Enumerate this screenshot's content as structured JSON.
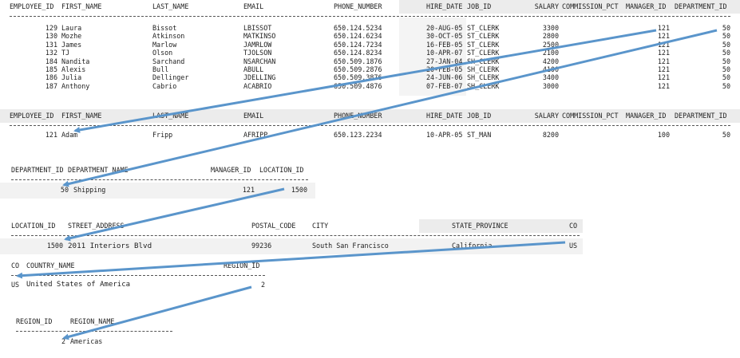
{
  "tables": [
    {
      "id": "employees",
      "columns": [
        "EMPLOYEE_ID",
        "FIRST_NAME",
        "LAST_NAME",
        "EMAIL",
        "PHONE_NUMBER",
        "HIRE_DATE",
        "JOB_ID",
        "SALARY",
        "COMMISSION_PCT",
        "MANAGER_ID",
        "DEPARTMENT_ID"
      ],
      "rows": [
        [
          "129",
          "Laura",
          "Bissot",
          "LBISSOT",
          "650.124.5234",
          "20-AUG-05",
          "ST_CLERK",
          "3300",
          "",
          "121",
          "50"
        ],
        [
          "130",
          "Mozhe",
          "Atkinson",
          "MATKINSO",
          "650.124.6234",
          "30-OCT-05",
          "ST_CLERK",
          "2800",
          "",
          "121",
          "50"
        ],
        [
          "131",
          "James",
          "Marlow",
          "JAMRLOW",
          "650.124.7234",
          "16-FEB-05",
          "ST_CLERK",
          "2500",
          "",
          "121",
          "50"
        ],
        [
          "132",
          "TJ",
          "Olson",
          "TJOLSON",
          "650.124.8234",
          "10-APR-07",
          "ST_CLERK",
          "2100",
          "",
          "121",
          "50"
        ],
        [
          "184",
          "Nandita",
          "Sarchand",
          "NSARCHAN",
          "650.509.1876",
          "27-JAN-04",
          "SH_CLERK",
          "4200",
          "",
          "121",
          "50"
        ],
        [
          "185",
          "Alexis",
          "Bull",
          "ABULL",
          "650.509.2876",
          "20-FEB-05",
          "SH_CLERK",
          "4100",
          "",
          "121",
          "50"
        ],
        [
          "186",
          "Julia",
          "Dellinger",
          "JDELLING",
          "650.509.3876",
          "24-JUN-06",
          "SH_CLERK",
          "3400",
          "",
          "121",
          "50"
        ],
        [
          "187",
          "Anthony",
          "Cabrio",
          "ACABRIO",
          "650.509.4876",
          "07-FEB-07",
          "SH_CLERK",
          "3000",
          "",
          "121",
          "50"
        ]
      ]
    },
    {
      "id": "manager",
      "columns": [
        "EMPLOYEE_ID",
        "FIRST_NAME",
        "LAST_NAME",
        "EMAIL",
        "PHONE_NUMBER",
        "HIRE_DATE",
        "JOB_ID",
        "SALARY",
        "COMMISSION_PCT",
        "MANAGER_ID",
        "DEPARTMENT_ID"
      ],
      "rows": [
        [
          "121",
          "Adam",
          "Fripp",
          "AFRIPP",
          "650.123.2234",
          "10-APR-05",
          "ST_MAN",
          "8200",
          "",
          "100",
          "50"
        ]
      ]
    },
    {
      "id": "department",
      "columns": [
        "DEPARTMENT_ID",
        "DEPARTMENT_NAME",
        "MANAGER_ID",
        "LOCATION_ID"
      ],
      "rows": [
        [
          "50",
          "Shipping",
          "121",
          "1500"
        ]
      ]
    },
    {
      "id": "location",
      "columns": [
        "LOCATION_ID",
        "STREET_ADDRESS",
        "POSTAL_CODE",
        "CITY",
        "STATE_PROVINCE",
        "CO"
      ],
      "rows": [
        [
          "1500",
          "2011 Interiors Blvd",
          "99236",
          "South San Francisco",
          "California",
          "US"
        ]
      ]
    },
    {
      "id": "country",
      "columns": [
        "CO",
        "COUNTRY_NAME",
        "REGION_ID"
      ],
      "rows": [
        [
          "US",
          "United States of America",
          "2"
        ]
      ]
    },
    {
      "id": "region",
      "columns": [
        "REGION_ID",
        "REGION_NAME"
      ],
      "rows": [
        [
          "2",
          "Americas"
        ]
      ]
    }
  ],
  "colors": {
    "arrow": "#5a95cb",
    "header_band": "#ececec",
    "text": "#1e1e1e"
  }
}
